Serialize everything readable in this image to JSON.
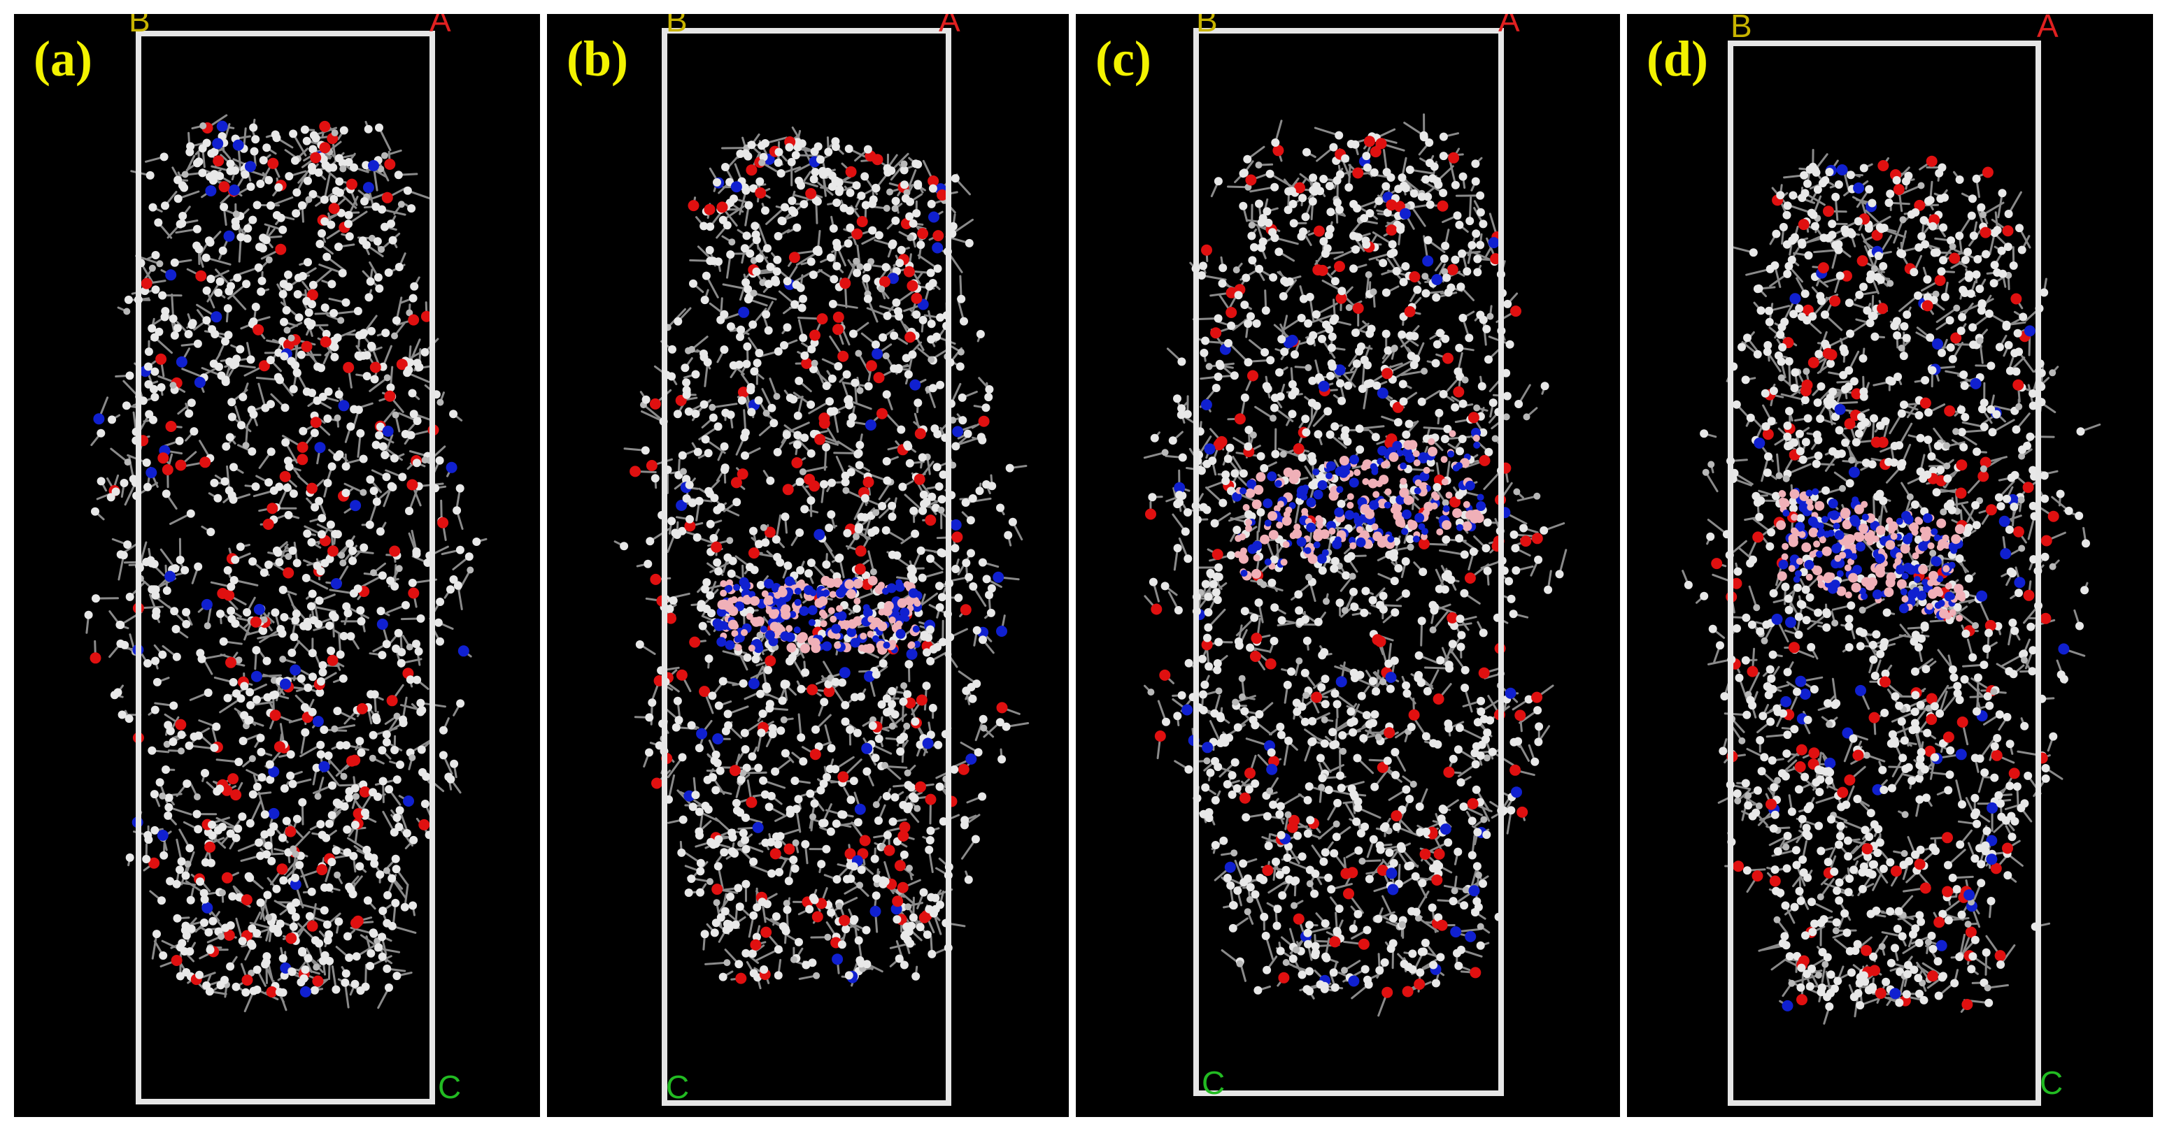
{
  "panels": [
    {
      "label": "(a)",
      "corners": {
        "a": "A",
        "b": "B",
        "c": "C"
      },
      "molecule_slab": "none"
    },
    {
      "label": "(b)",
      "corners": {
        "a": "A",
        "b": "B",
        "c": "C"
      },
      "molecule_slab": "flat-horizontal"
    },
    {
      "label": "(c)",
      "corners": {
        "a": "A",
        "b": "B",
        "c": "C"
      },
      "molecule_slab": "tilted-upper"
    },
    {
      "label": "(d)",
      "corners": {
        "a": "A",
        "b": "B",
        "c": "C"
      },
      "molecule_slab": "tilted-middle"
    }
  ],
  "colors": {
    "background": "#000000",
    "cell_box": "#e6e6e6",
    "label": "#f2f200",
    "hydrogen": "#e8e8e8",
    "carbon_bond": "#8a8a8a",
    "oxygen": "#e01010",
    "nitrogen": "#1020d0",
    "slab_atom": "#f0b0b8",
    "axis_a": "#e02020",
    "axis_b": "#c8b400",
    "axis_c": "#22bb22"
  }
}
